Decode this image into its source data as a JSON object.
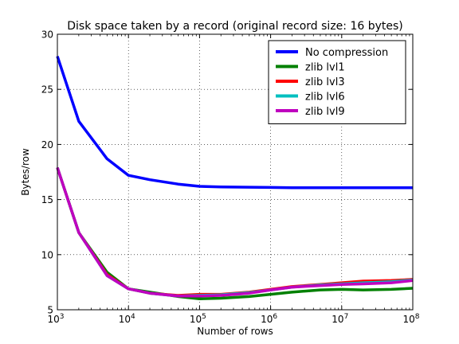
{
  "chart_data": {
    "type": "line",
    "title": "Disk space taken by a record (original record size: 16 bytes)",
    "xlabel": "Number of rows",
    "ylabel": "Bytes/row",
    "xscale": "log",
    "xlim": [
      1000,
      100000000
    ],
    "ylim": [
      5,
      30
    ],
    "grid": true,
    "legend_position": "top-right",
    "x_ticks": [
      {
        "value": 1000,
        "base": "10",
        "exp": "3"
      },
      {
        "value": 10000,
        "base": "10",
        "exp": "4"
      },
      {
        "value": 100000,
        "base": "10",
        "exp": "5"
      },
      {
        "value": 1000000,
        "base": "10",
        "exp": "6"
      },
      {
        "value": 10000000,
        "base": "10",
        "exp": "7"
      },
      {
        "value": 100000000,
        "base": "10",
        "exp": "8"
      }
    ],
    "y_ticks": [
      {
        "value": 5,
        "label": "5"
      },
      {
        "value": 10,
        "label": "10"
      },
      {
        "value": 15,
        "label": "15"
      },
      {
        "value": 20,
        "label": "20"
      },
      {
        "value": 25,
        "label": "25"
      },
      {
        "value": 30,
        "label": "30"
      }
    ],
    "x": [
      1000,
      2000,
      5000,
      10000,
      20000,
      50000,
      100000,
      200000,
      500000,
      1000000,
      2000000,
      5000000,
      10000000,
      20000000,
      50000000,
      100000000
    ],
    "series": [
      {
        "name": "No compression",
        "color": "#0000ff",
        "values": [
          28.0,
          22.1,
          18.7,
          17.2,
          16.8,
          16.4,
          16.2,
          16.15,
          16.12,
          16.1,
          16.08,
          16.08,
          16.08,
          16.08,
          16.08,
          16.08
        ]
      },
      {
        "name": "zlib lvl1",
        "color": "#008000",
        "values": [
          17.9,
          12.0,
          8.4,
          6.9,
          6.6,
          6.2,
          6.0,
          6.05,
          6.2,
          6.4,
          6.6,
          6.8,
          6.85,
          6.8,
          6.85,
          6.95
        ]
      },
      {
        "name": "zlib lvl3",
        "color": "#ff0000",
        "values": [
          17.9,
          12.0,
          8.2,
          6.9,
          6.5,
          6.3,
          6.4,
          6.4,
          6.6,
          6.85,
          7.1,
          7.3,
          7.45,
          7.6,
          7.65,
          7.75
        ]
      },
      {
        "name": "zlib lvl6",
        "color": "#00bfbf",
        "values": [
          17.9,
          12.0,
          8.1,
          6.9,
          6.5,
          6.25,
          6.3,
          6.35,
          6.55,
          6.8,
          7.05,
          7.25,
          7.35,
          7.45,
          7.55,
          7.7
        ]
      },
      {
        "name": "zlib lvl9",
        "color": "#bf00bf",
        "values": [
          17.9,
          12.0,
          8.1,
          6.9,
          6.5,
          6.25,
          6.25,
          6.3,
          6.5,
          6.8,
          7.05,
          7.2,
          7.3,
          7.35,
          7.45,
          7.65
        ]
      }
    ]
  }
}
